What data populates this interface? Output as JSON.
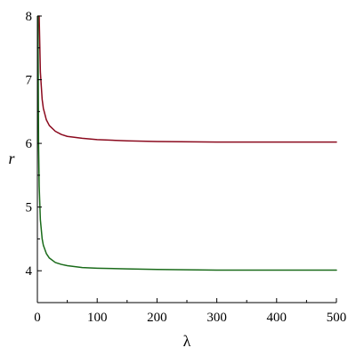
{
  "chart_data": {
    "type": "line",
    "xlabel": "λ",
    "ylabel": "r",
    "xlim": [
      0,
      500
    ],
    "ylim": [
      3.5,
      8
    ],
    "x_ticks": [
      0,
      100,
      200,
      300,
      400,
      500
    ],
    "x_tick_labels": [
      "0",
      "100",
      "200",
      "300",
      "400",
      "500"
    ],
    "y_ticks": [
      4,
      5,
      6,
      7,
      8
    ],
    "y_tick_labels": [
      "4",
      "5",
      "6",
      "7",
      "8"
    ],
    "grid": false,
    "series": [
      {
        "color": "#8b0a1e",
        "x": [
          3,
          5,
          8,
          10,
          15,
          20,
          30,
          40,
          50,
          75,
          100,
          150,
          200,
          300,
          400,
          500
        ],
        "values": [
          8.0,
          7.12,
          6.69,
          6.55,
          6.37,
          6.28,
          6.19,
          6.14,
          6.11,
          6.08,
          6.06,
          6.04,
          6.03,
          6.02,
          6.02,
          6.02
        ]
      },
      {
        "color": "#1a6b1a",
        "x": [
          1,
          2,
          3,
          5,
          8,
          10,
          15,
          20,
          30,
          40,
          50,
          75,
          100,
          150,
          200,
          300,
          400,
          500
        ],
        "values": [
          8.0,
          6.0,
          5.33,
          4.8,
          4.5,
          4.4,
          4.27,
          4.2,
          4.13,
          4.1,
          4.08,
          4.05,
          4.04,
          4.03,
          4.02,
          4.01,
          4.01,
          4.01
        ]
      }
    ]
  }
}
